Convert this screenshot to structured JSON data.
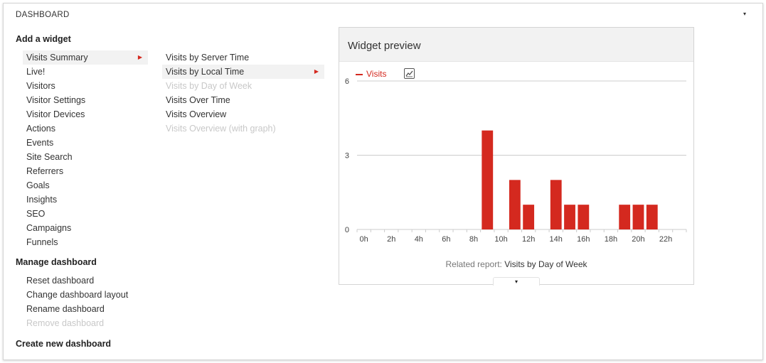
{
  "dashboard": {
    "title": "DASHBOARD",
    "caret": "▾"
  },
  "add_widget": {
    "heading": "Add a widget",
    "categories": [
      {
        "label": "Visits Summary",
        "active": true,
        "has_submenu": true
      },
      {
        "label": "Live!"
      },
      {
        "label": "Visitors"
      },
      {
        "label": "Visitor Settings"
      },
      {
        "label": "Visitor Devices"
      },
      {
        "label": "Actions"
      },
      {
        "label": "Events"
      },
      {
        "label": "Site Search"
      },
      {
        "label": "Referrers"
      },
      {
        "label": "Goals"
      },
      {
        "label": "Insights"
      },
      {
        "label": "SEO"
      },
      {
        "label": "Campaigns"
      },
      {
        "label": "Funnels"
      }
    ],
    "widgets": [
      {
        "label": "Visits by Server Time"
      },
      {
        "label": "Visits by Local Time",
        "active": true,
        "has_submenu": true
      },
      {
        "label": "Visits by Day of Week",
        "disabled": true
      },
      {
        "label": "Visits Over Time"
      },
      {
        "label": "Visits Overview"
      },
      {
        "label": "Visits Overview (with graph)",
        "disabled": true
      }
    ]
  },
  "manage": {
    "heading": "Manage dashboard",
    "items": [
      {
        "label": "Reset dashboard"
      },
      {
        "label": "Change dashboard layout"
      },
      {
        "label": "Rename dashboard"
      },
      {
        "label": "Remove dashboard",
        "disabled": true
      }
    ]
  },
  "create": {
    "label": "Create new dashboard"
  },
  "preview": {
    "title": "Widget preview",
    "related_prefix": "Related report:",
    "related_link": "Visits by Day of Week",
    "expand_icon": "▾",
    "chart_icon": "line-chart-icon"
  },
  "colors": {
    "accent": "#d4291f",
    "bar": "#d4291f",
    "grid": "#cccccc"
  },
  "chart_data": {
    "type": "bar",
    "series": [
      {
        "name": "Visits",
        "values": [
          0,
          0,
          0,
          0,
          0,
          0,
          0,
          0,
          0,
          4,
          0,
          2,
          1,
          0,
          2,
          1,
          1,
          0,
          0,
          1,
          1,
          1,
          0,
          0
        ]
      }
    ],
    "categories": [
      "0h",
      "1h",
      "2h",
      "3h",
      "4h",
      "5h",
      "6h",
      "7h",
      "8h",
      "9h",
      "10h",
      "11h",
      "12h",
      "13h",
      "14h",
      "15h",
      "16h",
      "17h",
      "18h",
      "19h",
      "20h",
      "21h",
      "22h",
      "23h"
    ],
    "tick_labels": [
      "0h",
      "2h",
      "4h",
      "6h",
      "8h",
      "10h",
      "12h",
      "14h",
      "16h",
      "18h",
      "20h",
      "22h"
    ],
    "y_ticks": [
      "0",
      "3",
      "6"
    ],
    "ylim": [
      0,
      6
    ],
    "legend_position": "top-left",
    "grid": true
  }
}
